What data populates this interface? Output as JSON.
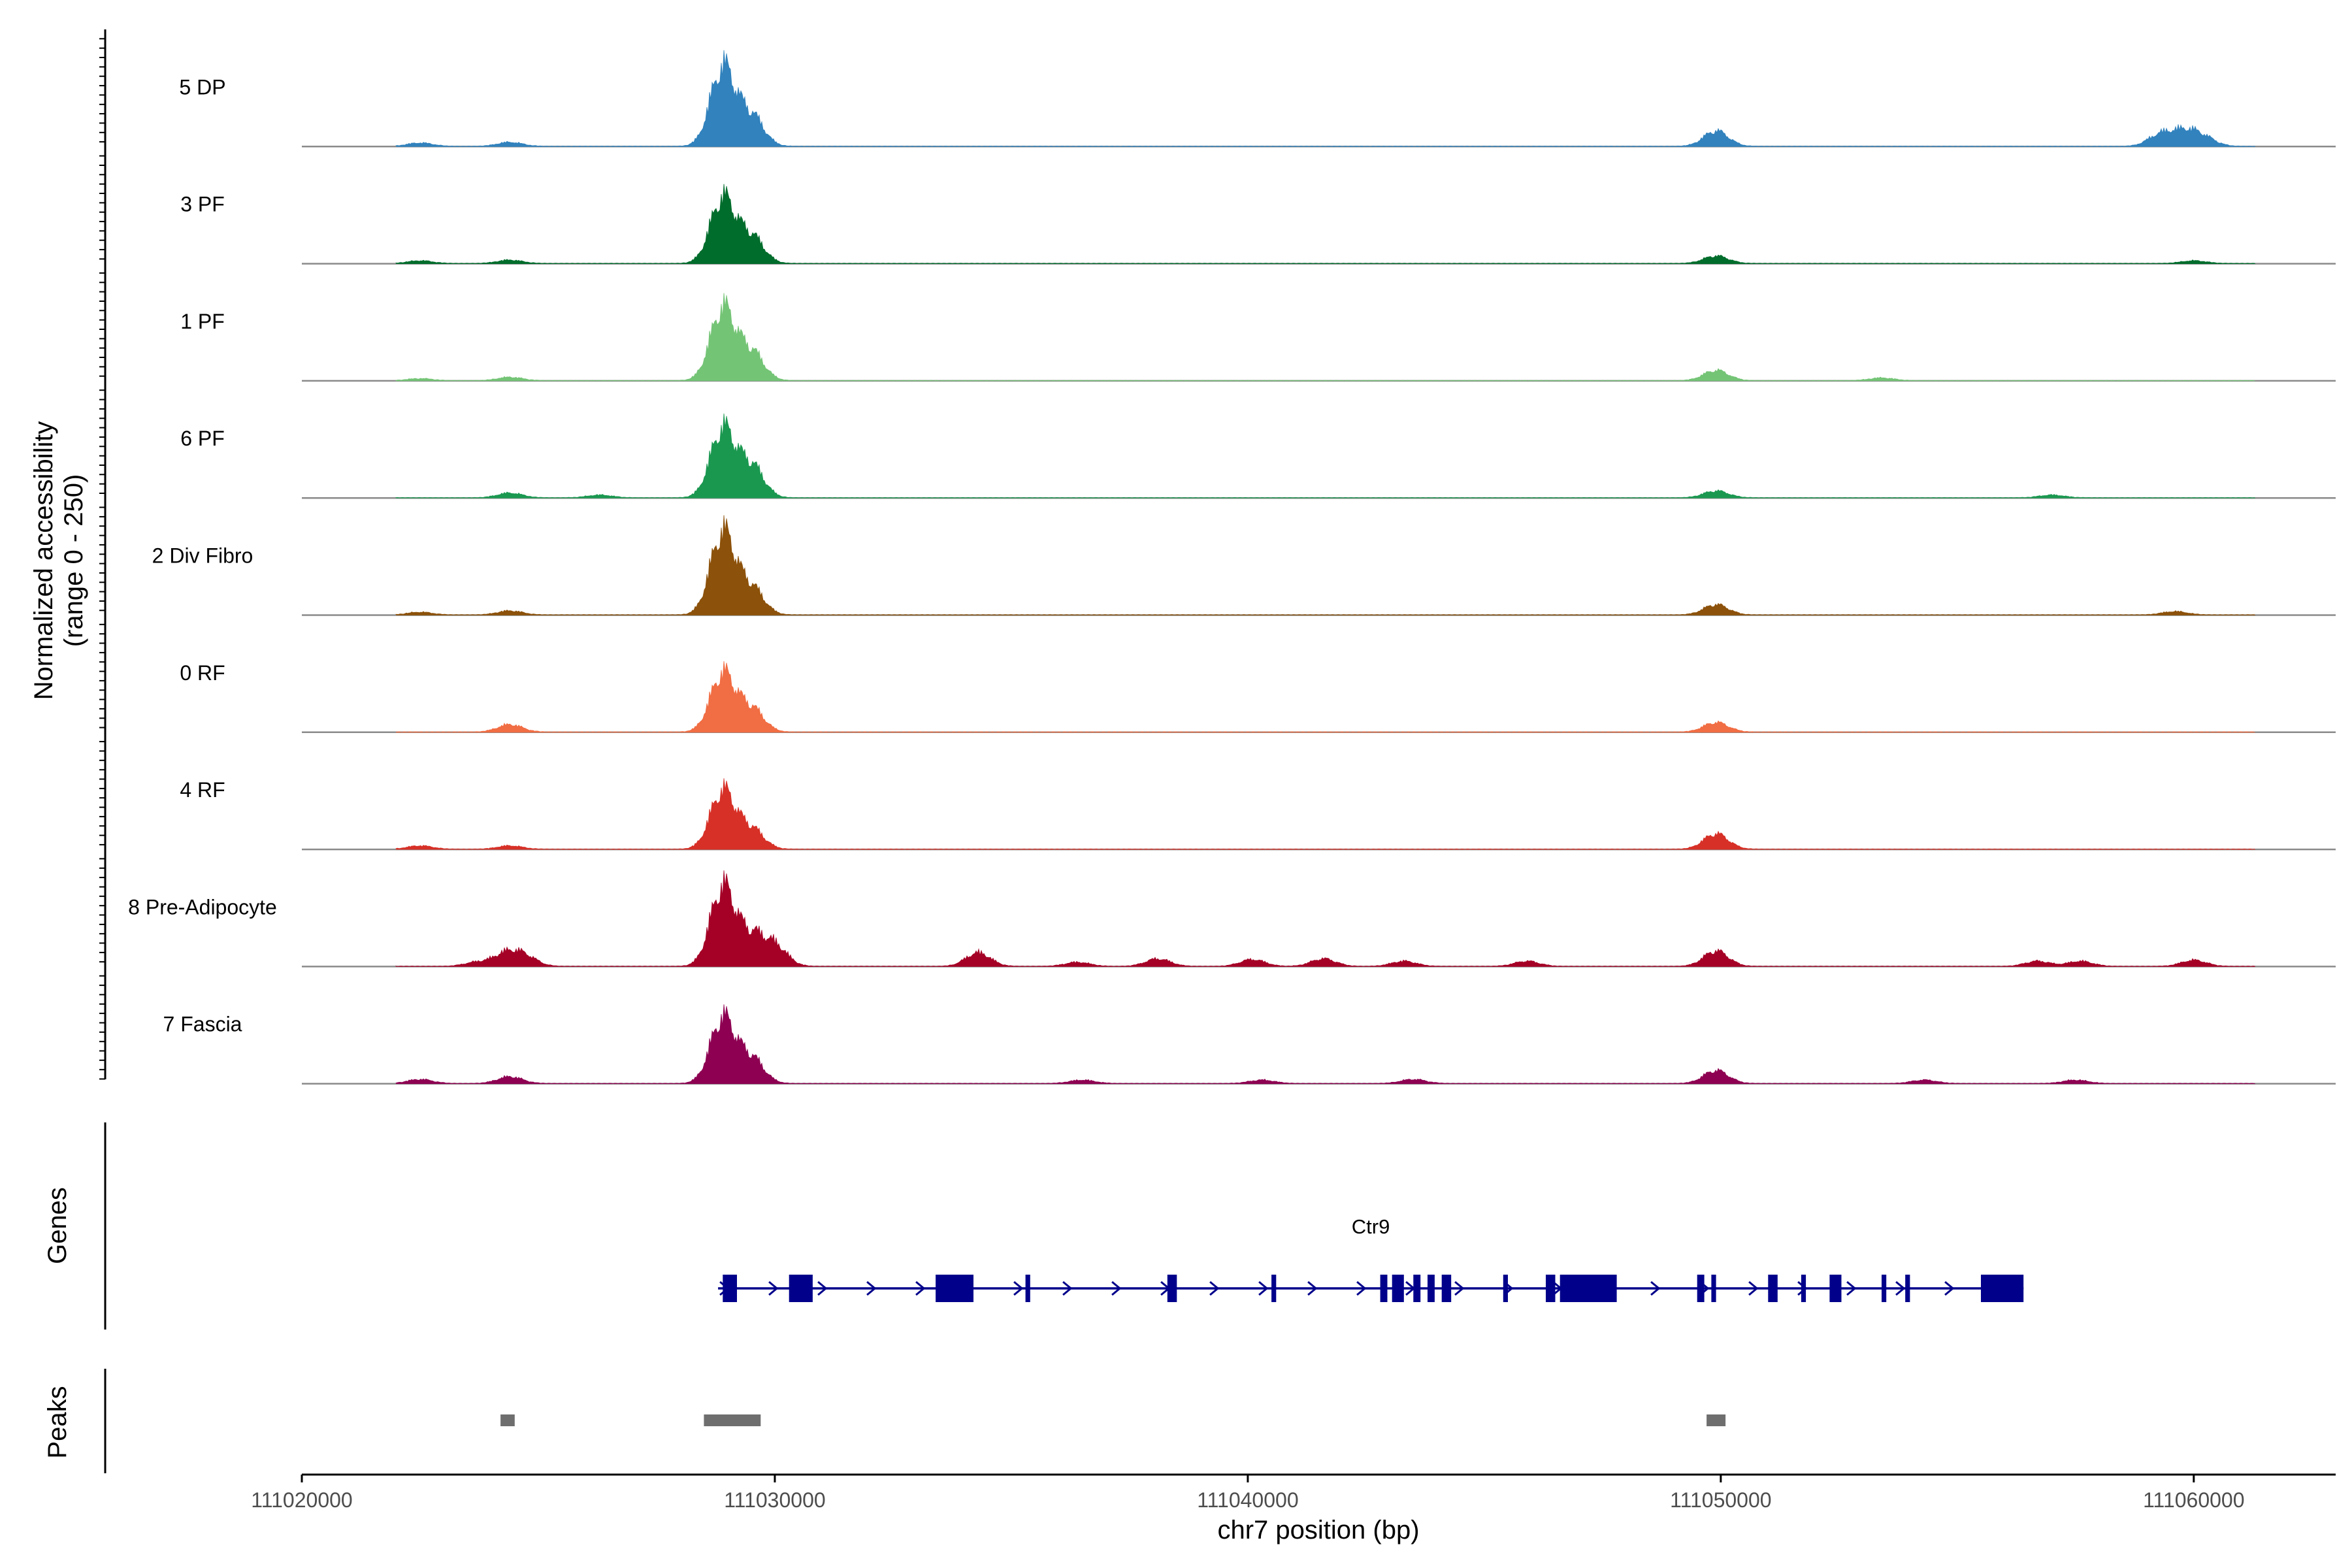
{
  "chart_data": {
    "type": "area",
    "title": "",
    "ylabel": [
      "Normalized accessibility",
      "(range 0 - 250)"
    ],
    "xlabel": "chr7 position (bp)",
    "chromosome": "chr7",
    "xlim": [
      111020000,
      111063000
    ],
    "ylim": [
      0,
      250
    ],
    "x_ticks": [
      111020000,
      111030000,
      111040000,
      111050000,
      111060000
    ],
    "x_tick_labels": [
      "111020000",
      "111030000",
      "111040000",
      "111050000",
      "111060000"
    ],
    "track_range": [
      111022000,
      111061300
    ],
    "series": [
      {
        "name": "5 DP",
        "color": "#3182bd",
        "peaks": [
          [
            111028900,
            230
          ],
          [
            111029500,
            90
          ],
          [
            111049900,
            45
          ],
          [
            111059300,
            35
          ],
          [
            111059800,
            40
          ],
          [
            111060200,
            25
          ],
          [
            111022500,
            10
          ],
          [
            111024400,
            12
          ]
        ]
      },
      {
        "name": "3 PF",
        "color": "#006d2c",
        "peaks": [
          [
            111028900,
            190
          ],
          [
            111029500,
            80
          ],
          [
            111049900,
            22
          ],
          [
            111022500,
            8
          ],
          [
            111024400,
            10
          ],
          [
            111060000,
            8
          ]
        ]
      },
      {
        "name": "1 PF",
        "color": "#74c476",
        "peaks": [
          [
            111028900,
            210
          ],
          [
            111029500,
            85
          ],
          [
            111049900,
            30
          ],
          [
            111024400,
            10
          ],
          [
            111053400,
            8
          ],
          [
            111022500,
            6
          ]
        ]
      },
      {
        "name": "6 PF",
        "color": "#1a9850",
        "peaks": [
          [
            111028900,
            200
          ],
          [
            111029500,
            95
          ],
          [
            111049900,
            20
          ],
          [
            111024400,
            14
          ],
          [
            111026300,
            8
          ],
          [
            111057000,
            8
          ]
        ]
      },
      {
        "name": "2 Div Fibro",
        "color": "#8c510a",
        "peaks": [
          [
            111028900,
            240
          ],
          [
            111029500,
            80
          ],
          [
            111049900,
            30
          ],
          [
            111024400,
            12
          ],
          [
            111022500,
            8
          ],
          [
            111059600,
            10
          ]
        ]
      },
      {
        "name": "0 RF",
        "color": "#f16d43",
        "peaks": [
          [
            111028900,
            170
          ],
          [
            111029500,
            70
          ],
          [
            111049900,
            28
          ],
          [
            111024400,
            22
          ]
        ]
      },
      {
        "name": "4 RF",
        "color": "#d73027",
        "peaks": [
          [
            111028900,
            170
          ],
          [
            111029500,
            60
          ],
          [
            111049900,
            45
          ],
          [
            111024400,
            10
          ],
          [
            111022500,
            10
          ]
        ]
      },
      {
        "name": "8 Pre-Adipocyte",
        "color": "#a50026",
        "peaks": [
          [
            111028900,
            230
          ],
          [
            111029500,
            85
          ],
          [
            111030000,
            60
          ],
          [
            111024300,
            35
          ],
          [
            111024700,
            30
          ],
          [
            111049900,
            45
          ],
          [
            111034300,
            40
          ],
          [
            111038100,
            22
          ],
          [
            111040100,
            20
          ],
          [
            111041600,
            22
          ],
          [
            111045900,
            15
          ],
          [
            111056700,
            15
          ],
          [
            111057600,
            15
          ],
          [
            111060000,
            18
          ],
          [
            111023700,
            12
          ],
          [
            111036400,
            12
          ],
          [
            111043300,
            15
          ]
        ]
      },
      {
        "name": "7 Fascia",
        "color": "#8e0152",
        "peaks": [
          [
            111028900,
            190
          ],
          [
            111029500,
            75
          ],
          [
            111049900,
            38
          ],
          [
            111024400,
            20
          ],
          [
            111022500,
            12
          ],
          [
            111043500,
            12
          ],
          [
            111036500,
            10
          ],
          [
            111040300,
            10
          ],
          [
            111054300,
            10
          ],
          [
            111057500,
            10
          ]
        ]
      }
    ],
    "genes_track": {
      "label": "Genes",
      "gene_name": "Ctr9",
      "gene_start": 111028800,
      "gene_end": 111056400,
      "strand": "+",
      "exons": [
        [
          111028900,
          111029200
        ],
        [
          111030300,
          111030800
        ],
        [
          111033400,
          111034200
        ],
        [
          111035300,
          111035400
        ],
        [
          111038300,
          111038500
        ],
        [
          111040500,
          111040600
        ],
        [
          111042800,
          111042950
        ],
        [
          111043050,
          111043300
        ],
        [
          111043500,
          111043650
        ],
        [
          111043800,
          111043950
        ],
        [
          111044100,
          111044300
        ],
        [
          111045400,
          111045500
        ],
        [
          111046300,
          111046500
        ],
        [
          111046600,
          111047800
        ],
        [
          111049500,
          111049650
        ],
        [
          111049800,
          111049900
        ],
        [
          111051000,
          111051200
        ],
        [
          111051700,
          111051800
        ],
        [
          111052300,
          111052550
        ],
        [
          111053400,
          111053500
        ],
        [
          111053900,
          111054000
        ],
        [
          111055500,
          111056400
        ]
      ],
      "color": "#00008b"
    },
    "peaks_track": {
      "label": "Peaks",
      "regions": [
        [
          111024200,
          111024500
        ],
        [
          111028500,
          111029700
        ],
        [
          111049700,
          111050100
        ]
      ],
      "color": "#6e6e6e"
    }
  }
}
